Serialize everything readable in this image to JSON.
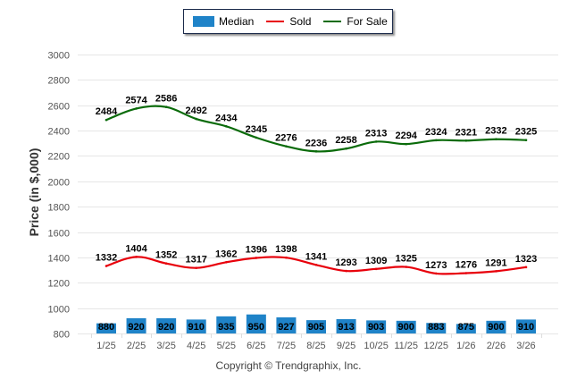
{
  "legend": {
    "items": [
      {
        "label": "Median",
        "color": "#1f83c8",
        "kind": "box"
      },
      {
        "label": "Sold",
        "color": "#e8000b",
        "kind": "line"
      },
      {
        "label": "For Sale",
        "color": "#0a6b0a",
        "kind": "line"
      }
    ]
  },
  "copyright": "Copyright © Trendgraphix, Inc.",
  "chart_data": {
    "type": "line",
    "title": "",
    "xlabel": "",
    "ylabel": "Price (in $,000)",
    "ylim": [
      800,
      3000
    ],
    "yticks": [
      800,
      1000,
      1200,
      1400,
      1600,
      1800,
      2000,
      2200,
      2400,
      2600,
      2800,
      3000
    ],
    "grid": true,
    "legend_position": "top-center",
    "categories": [
      "1/25",
      "2/25",
      "3/25",
      "4/25",
      "5/25",
      "6/25",
      "7/25",
      "8/25",
      "9/25",
      "10/25",
      "11/25",
      "12/25",
      "1/26",
      "2/26",
      "3/26"
    ],
    "series": [
      {
        "name": "Median",
        "type": "bar",
        "color": "#1f83c8",
        "values": [
          880,
          920,
          920,
          910,
          935,
          950,
          927,
          905,
          913,
          903,
          900,
          883,
          875,
          900,
          910
        ]
      },
      {
        "name": "Sold",
        "type": "line",
        "color": "#e8000b",
        "values": [
          1332,
          1404,
          1352,
          1317,
          1362,
          1396,
          1398,
          1341,
          1293,
          1309,
          1325,
          1273,
          1276,
          1291,
          1323
        ]
      },
      {
        "name": "For Sale",
        "type": "line",
        "color": "#0a6b0a",
        "values": [
          2484,
          2574,
          2586,
          2492,
          2434,
          2345,
          2276,
          2236,
          2258,
          2313,
          2294,
          2324,
          2321,
          2332,
          2325
        ]
      }
    ]
  }
}
